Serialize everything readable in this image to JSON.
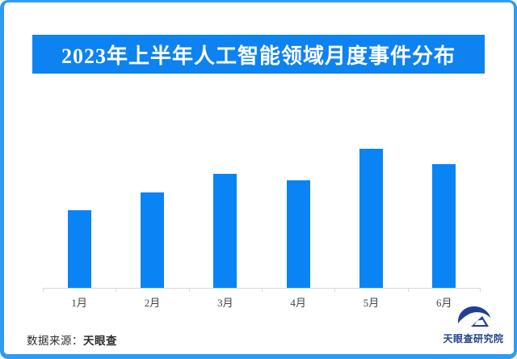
{
  "colors": {
    "frame_border": "#2d9cf4",
    "title_bg": "#0d82f1",
    "title_text": "#ffffff",
    "bar": "#0a84f4",
    "axis": "#d8d8d8",
    "axis_label": "#444444",
    "footer_text": "#2b2b2b",
    "logo": "#233f8f"
  },
  "chart_data": {
    "type": "bar",
    "title": "2023年上半年人工智能领域月度事件分布",
    "categories": [
      "1月",
      "2月",
      "3月",
      "4月",
      "5月",
      "6月"
    ],
    "values": [
      96,
      118,
      141,
      133,
      172,
      153
    ],
    "ylim": [
      0,
      200
    ],
    "xlabel": "",
    "ylabel": "",
    "grid": false,
    "legend": false,
    "value_labels_shown": false
  },
  "footer": {
    "source_label": "数据来源：",
    "source_value": "天眼查",
    "logo_text": "天眼查研究院"
  }
}
